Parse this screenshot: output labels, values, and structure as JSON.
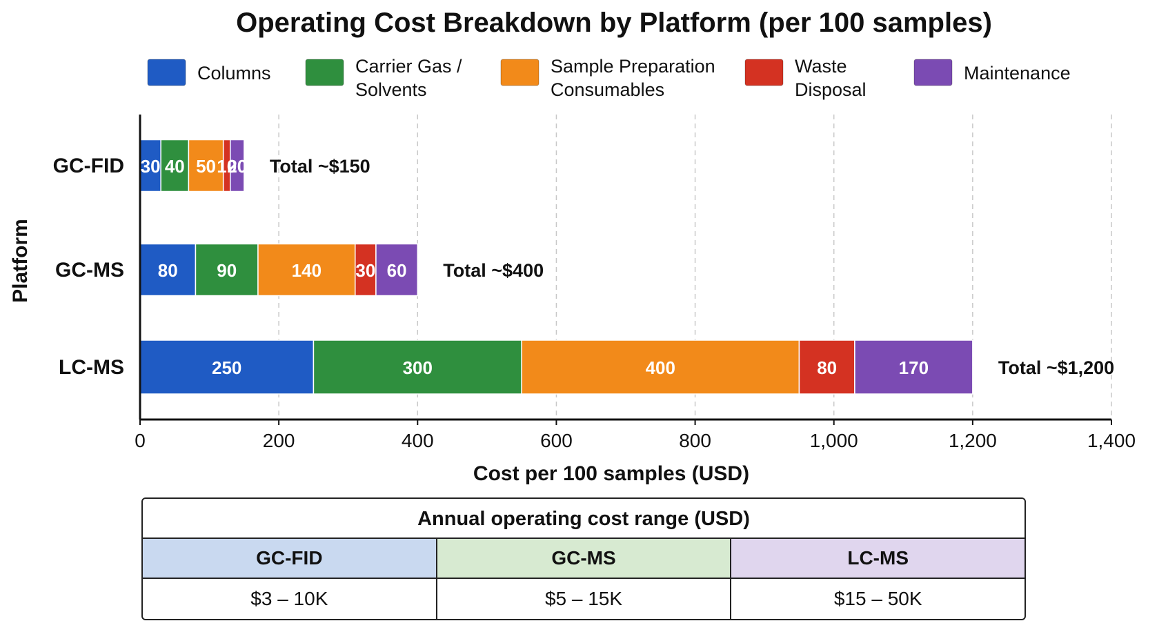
{
  "chart_data": {
    "type": "bar",
    "orientation": "horizontal",
    "stacked": true,
    "title": "Operating Cost Breakdown by Platform (per 100 samples)",
    "xlabel": "Cost per 100 samples (USD)",
    "ylabel": "Platform",
    "xlim": [
      0,
      1400
    ],
    "x_ticks": [
      0,
      200,
      400,
      600,
      800,
      1000,
      1200,
      1400
    ],
    "x_tick_labels": [
      "0",
      "200",
      "400",
      "600",
      "800",
      "1,000",
      "1,200",
      "1,400"
    ],
    "grid": "vertical dashed",
    "legend_position": "top",
    "categories": [
      "GC-FID",
      "GC-MS",
      "LC-MS"
    ],
    "series": [
      {
        "name": "Columns",
        "legend_lines": [
          "Columns"
        ],
        "color": "#1f5bc4",
        "values": [
          30,
          80,
          250
        ]
      },
      {
        "name": "Carrier Gas / Solvents",
        "legend_lines": [
          "Carrier Gas /",
          "Solvents"
        ],
        "color": "#2f8f3e",
        "values": [
          40,
          90,
          300
        ]
      },
      {
        "name": "Sample Preparation Consumables",
        "legend_lines": [
          "Sample Preparation",
          "Consumables"
        ],
        "color": "#f28a1a",
        "values": [
          50,
          140,
          400
        ]
      },
      {
        "name": "Waste Disposal",
        "legend_lines": [
          "Waste",
          "Disposal"
        ],
        "color": "#d43222",
        "values": [
          10,
          30,
          80
        ]
      },
      {
        "name": "Maintenance",
        "legend_lines": [
          "Maintenance"
        ],
        "color": "#7b4bb3",
        "values": [
          20,
          60,
          170
        ]
      }
    ],
    "annotations": [
      "Total ~$150",
      "Total ~$400",
      "Total ~$1,200"
    ]
  },
  "summary_table": {
    "title": "Annual operating cost range (USD)",
    "headers": [
      "GC-FID",
      "GC-MS",
      "LC-MS"
    ],
    "values": [
      "$3 – 10K",
      "$5 – 15K",
      "$15 – 50K"
    ],
    "header_colors": [
      "#c9d9f0",
      "#d7ead1",
      "#e0d6ee"
    ]
  }
}
